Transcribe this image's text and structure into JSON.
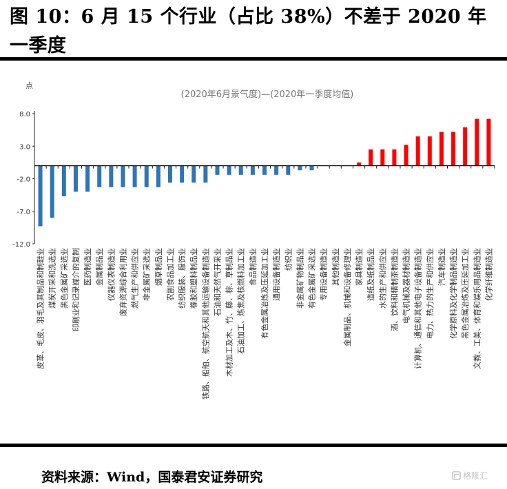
{
  "figure": {
    "title": "图 10：6 月 15 个行业（占比 38%）不差于 2020 年一季度",
    "source": "资料来源：Wind，国泰君安证券研究",
    "watermark": "格隆汇"
  },
  "chart_data": {
    "type": "bar",
    "title": "(2020年6月景气度)—(2020年一季度均值)",
    "ylabel": "点",
    "xlabel": "",
    "ylim": [
      -12.0,
      8.0
    ],
    "yticks": [
      8.0,
      3.0,
      -2.0,
      -7.0,
      -12.0
    ],
    "ytick_labels": [
      "8.0",
      "3.0",
      "-2.0",
      "-7.0",
      "-12.0"
    ],
    "grid": false,
    "legend": "none",
    "colors": {
      "negative": "#2e75b6",
      "positive": "#ff0000"
    },
    "categories": [
      "皮革、毛皮、羽毛及其制品和制鞋业",
      "煤炭开采和洗选业",
      "黑色金属矿采选业",
      "印刷业和记录媒介的复制",
      "医药制造业",
      "金属制品业",
      "仪器仪表制造业",
      "废弃资源综合利用业",
      "燃气生产和供应业",
      "非金属矿采选业",
      "烟草制品业",
      "农副食品加工业",
      "纺织服装、服饰业",
      "橡胶和塑料制品业",
      "铁路、船舶、航空航天和其他运输设备制造业",
      "石油和天然气开采业",
      "木材加工及木、竹、藤、棕、草制品业",
      "石油加工、炼焦及核燃料加工业",
      "食品制造业",
      "有色金属冶炼及压延加工业",
      "通用设备制造业",
      "纺织业",
      "非金属矿物制品业",
      "有色金属矿采选业",
      "专用设备制造业",
      "其他制造业",
      "金属制品、机械和设备修理业",
      "家具制造业",
      "造纸及纸制品业",
      "水的生产和供应业",
      "酒、饮料和精制茶制造业",
      "电气机械及器材制造业",
      "计算机、通信和其他电子设备制造业",
      "电力、热力的生产和供应业",
      "汽车制造业",
      "化学原料及化学制品制造业",
      "黑色金属冶炼及压延加工业",
      "文教、工美、体育和娱乐用品制造业",
      "化学纤维制造业"
    ],
    "values": [
      -9.3,
      -8.0,
      -4.7,
      -4.0,
      -4.0,
      -3.3,
      -3.3,
      -3.3,
      -3.3,
      -3.3,
      -3.3,
      -2.6,
      -2.6,
      -2.6,
      -2.6,
      -1.4,
      -1.4,
      -1.4,
      -1.4,
      -1.4,
      -1.4,
      -1.4,
      -0.7,
      -0.7,
      0.0,
      0.0,
      0.0,
      0.5,
      2.5,
      2.5,
      2.5,
      3.2,
      4.5,
      4.5,
      5.2,
      5.2,
      5.9,
      7.2,
      7.2
    ]
  }
}
